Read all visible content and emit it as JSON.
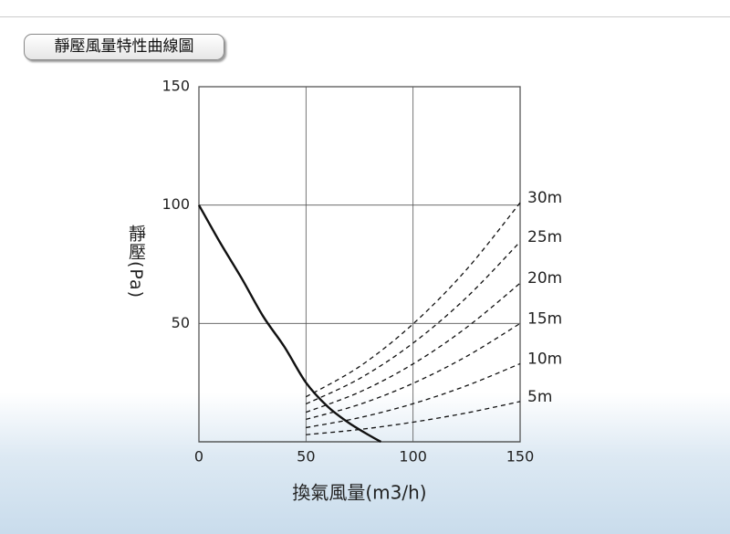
{
  "chart_data": {
    "type": "line",
    "title": "靜壓風量特性曲線圖",
    "x_label": "換氣風量(m3/h)",
    "y_label": "靜壓(Pa)",
    "xlim": [
      0,
      150
    ],
    "ylim": [
      0,
      150
    ],
    "xticks": [
      0,
      50,
      100,
      150
    ],
    "yticks": [
      50,
      100,
      150
    ],
    "grid": true,
    "series": [
      {
        "color": "#111111",
        "style": "solid",
        "x": [
          0,
          10,
          20,
          30,
          40,
          50,
          60,
          70,
          80,
          85
        ],
        "values": [
          100,
          84,
          69,
          53,
          40,
          25,
          15,
          8,
          2.5,
          0
        ]
      },
      {
        "name": "30m",
        "color": "#111111",
        "style": "dashed",
        "x": [
          50,
          75,
          100,
          125,
          150
        ],
        "values": [
          19,
          31.8,
          49.8,
          72.8,
          101
        ]
      },
      {
        "name": "25m",
        "color": "#111111",
        "style": "dashed",
        "x": [
          50,
          75,
          100,
          125,
          150
        ],
        "values": [
          16,
          26.7,
          41.7,
          61,
          84.5
        ]
      },
      {
        "name": "20m",
        "color": "#111111",
        "style": "dashed",
        "x": [
          50,
          75,
          100,
          125,
          150
        ],
        "values": [
          12.5,
          21,
          32.9,
          48.3,
          67
        ]
      },
      {
        "name": "15m",
        "color": "#111111",
        "style": "dashed",
        "x": [
          50,
          75,
          100,
          125,
          150
        ],
        "values": [
          9.5,
          15.8,
          24.7,
          36.1,
          50
        ]
      },
      {
        "name": "10m",
        "color": "#111111",
        "style": "dashed",
        "x": [
          50,
          75,
          100,
          125,
          150
        ],
        "values": [
          6,
          10.2,
          16.1,
          23.7,
          33
        ]
      },
      {
        "name": "5m",
        "color": "#111111",
        "style": "dashed",
        "x": [
          50,
          75,
          100,
          125,
          150
        ],
        "values": [
          3,
          5.2,
          8.3,
          12.2,
          17
        ]
      }
    ]
  }
}
